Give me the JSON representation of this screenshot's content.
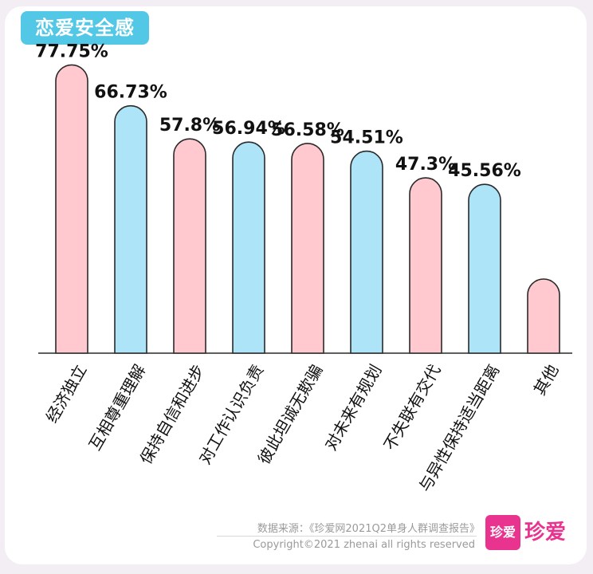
{
  "title": "恋爱安全感",
  "colors": {
    "pink_fill": "#ffc9cf",
    "blue_fill": "#aee4f8",
    "outline": "#2a2a2a",
    "badge": "#53c8e6",
    "brand": "#e8338f"
  },
  "chart_data": {
    "type": "bar",
    "title": "恋爱安全感",
    "categories": [
      "经济独立",
      "互相尊重理解",
      "保持自信和进步",
      "对工作认识负责",
      "彼此坦诚无欺骗",
      "对未来有规划",
      "不失联有交代",
      "与异性保持适当距离",
      "其他"
    ],
    "values": [
      77.75,
      66.73,
      57.8,
      56.94,
      56.58,
      54.51,
      47.3,
      45.56,
      20
    ],
    "value_labels": [
      "77.75%",
      "66.73%",
      "57.8%",
      "56.94%",
      "56.58%",
      "54.51%",
      "47.3%",
      "45.56%",
      ""
    ],
    "bar_colors": [
      "pink",
      "blue",
      "pink",
      "blue",
      "pink",
      "blue",
      "pink",
      "blue",
      "pink"
    ],
    "ylim": [
      0,
      80
    ],
    "grid": false,
    "legend": "none"
  },
  "footer": {
    "source": "数据来源：《珍爱网2021Q2单身人群调查报告》",
    "copyright": "Copyright©2021  zhenai  all rights reserved",
    "logo_mark": "珍爱",
    "logo_text": "珍爱"
  }
}
